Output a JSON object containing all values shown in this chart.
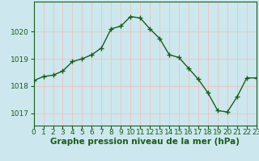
{
  "x": [
    0,
    1,
    2,
    3,
    4,
    5,
    6,
    7,
    8,
    9,
    10,
    11,
    12,
    13,
    14,
    15,
    16,
    17,
    18,
    19,
    20,
    21,
    22,
    23
  ],
  "y": [
    1018.2,
    1018.35,
    1018.4,
    1018.55,
    1018.9,
    1019.0,
    1019.15,
    1019.4,
    1020.1,
    1020.2,
    1020.55,
    1020.5,
    1020.1,
    1019.75,
    1019.15,
    1019.05,
    1018.65,
    1018.25,
    1017.75,
    1017.1,
    1017.05,
    1017.6,
    1018.3,
    1018.3
  ],
  "line_color": "#1a5c1a",
  "marker": "+",
  "marker_size": 4,
  "marker_linewidth": 1.0,
  "bg_color": "#cce8ee",
  "grid_color": "#e8c8c8",
  "ylabel_ticks": [
    1017,
    1018,
    1019,
    1020
  ],
  "xlabel_ticks": [
    0,
    1,
    2,
    3,
    4,
    5,
    6,
    7,
    8,
    9,
    10,
    11,
    12,
    13,
    14,
    15,
    16,
    17,
    18,
    19,
    20,
    21,
    22,
    23
  ],
  "xlim": [
    0,
    23
  ],
  "ylim": [
    1016.55,
    1021.1
  ],
  "xlabel": "Graphe pression niveau de la mer (hPa)",
  "xlabel_fontsize": 7.5,
  "tick_fontsize": 6.5,
  "line_width": 1.0,
  "spine_color": "#1a5c1a"
}
